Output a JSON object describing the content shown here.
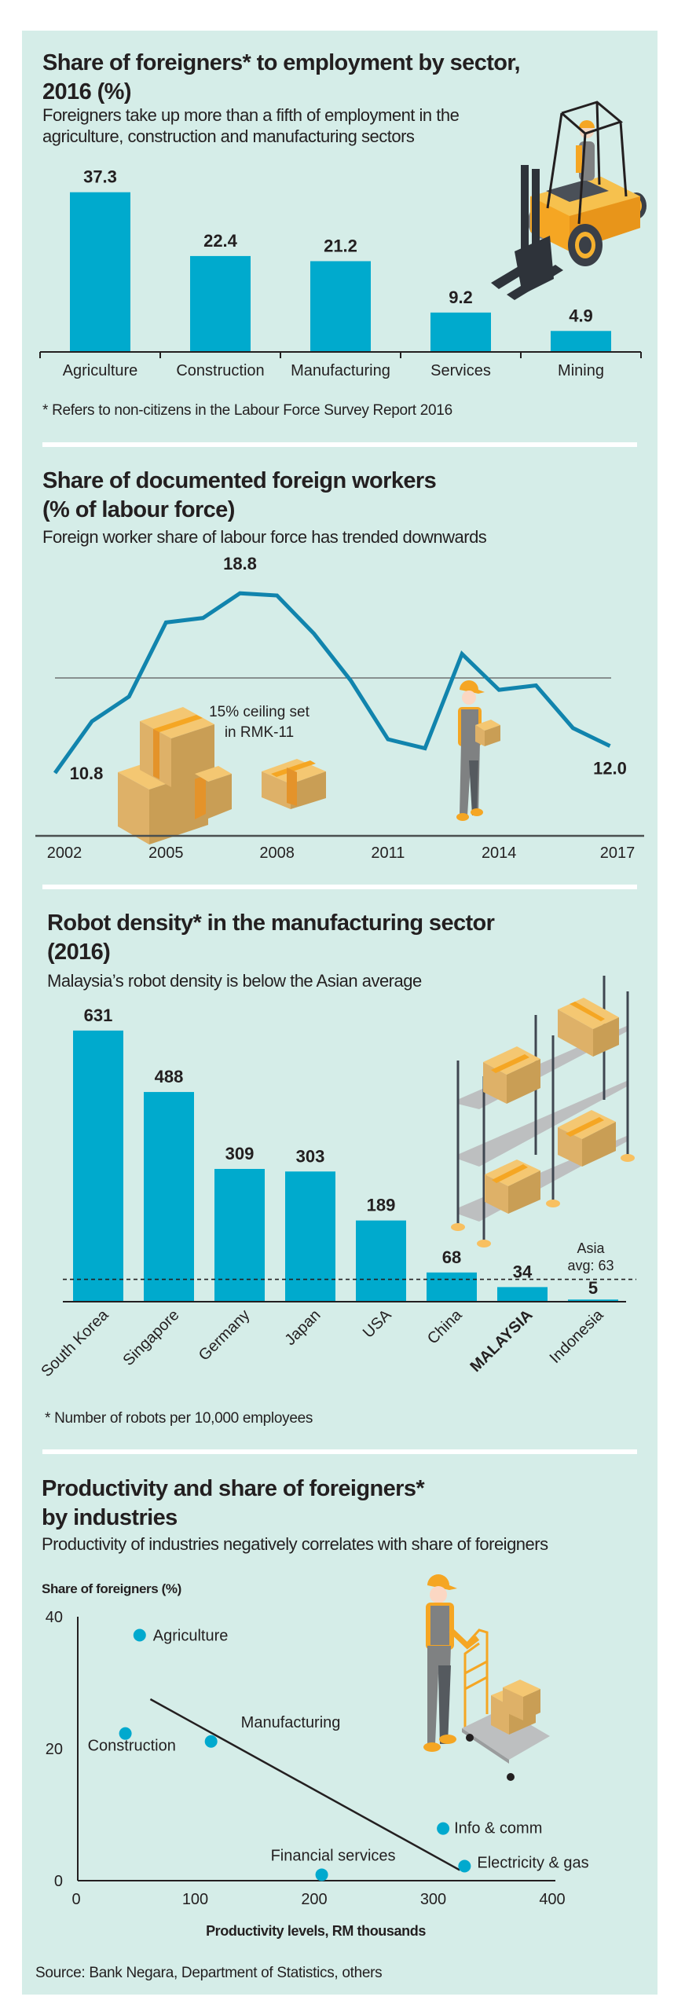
{
  "colors": {
    "panel_bg": "#d5ede8",
    "bar": "#00aacd",
    "line": "#1184ad",
    "dot": "#00a9ce",
    "text": "#231f20",
    "separator": "#ffffff"
  },
  "section1": {
    "title_line1": "Share of foreigners* to employment by sector,",
    "title_line2": "2016 (%)",
    "subtitle_line1": "Foreigners take up more than a fifth of employment in the",
    "subtitle_line2": "agriculture, construction and manufacturing sectors",
    "footnote": "* Refers to non-citizens in the Labour Force Survey Report 2016",
    "illustration": "forklift-icon"
  },
  "section2": {
    "title_line1": "Share of documented foreign workers",
    "title_line2": "(% of labour force)",
    "subtitle": "Foreign worker share of labour force has trended downwards",
    "ceiling_label_line1": "15% ceiling set",
    "ceiling_label_line2": "in RMK-11",
    "illustration": "worker-carrying-box-icon"
  },
  "section3": {
    "title_line1": "Robot density* in the manufacturing sector",
    "title_line2": "(2016)",
    "subtitle": "Malaysia’s robot density is below the Asian average",
    "avg_label_line1": "Asia",
    "avg_label_line2": "avg: 63",
    "footnote": "* Number of robots per 10,000 employees",
    "illustration": "warehouse-shelf-icon"
  },
  "section4": {
    "title_line1": "Productivity and share of foreigners*",
    "title_line2": "by industries",
    "subtitle": "Productivity of industries negatively correlates with share of foreigners",
    "illustration": "worker-pushing-trolley-icon"
  },
  "source": "Source: Bank Negara, Department of Statistics, others",
  "chart_data": [
    {
      "type": "bar",
      "title": "Share of foreigners* to employment by sector, 2016 (%)",
      "categories": [
        "Agriculture",
        "Construction",
        "Manufacturing",
        "Services",
        "Mining"
      ],
      "values": [
        37.3,
        22.4,
        21.2,
        9.2,
        4.9
      ],
      "value_labels": [
        "37.3",
        "22.4",
        "21.2",
        "9.2",
        "4.9"
      ],
      "xlabel": "",
      "ylabel": "%",
      "ylim": [
        0,
        40
      ],
      "grid": false
    },
    {
      "type": "line",
      "title": "Share of documented foreign workers (% of labour force)",
      "x": [
        2002,
        2003,
        2004,
        2005,
        2006,
        2007,
        2008,
        2009,
        2010,
        2011,
        2012,
        2013,
        2014,
        2015,
        2016,
        2017
      ],
      "values": [
        10.8,
        13.1,
        14.2,
        17.5,
        17.7,
        18.8,
        18.7,
        17.0,
        14.9,
        12.3,
        11.9,
        16.1,
        14.5,
        14.7,
        12.8,
        12.0
      ],
      "xticks": [
        "2002",
        "2005",
        "2008",
        "2011",
        "2014",
        "2017"
      ],
      "annotations": [
        {
          "year": 2002,
          "label": "10.8"
        },
        {
          "year": 2007,
          "label": "18.8"
        },
        {
          "year": 2017,
          "label": "12.0"
        }
      ],
      "reference_line": {
        "value": 15,
        "label": "15% ceiling set in RMK-11"
      },
      "ylim": [
        8,
        20
      ],
      "grid": false
    },
    {
      "type": "bar",
      "title": "Robot density* in the manufacturing sector (2016)",
      "categories": [
        "South Korea",
        "Singapore",
        "Germany",
        "Japan",
        "USA",
        "China",
        "MALAYSIA",
        "Indonesia"
      ],
      "values": [
        631,
        488,
        309,
        303,
        189,
        68,
        34,
        5
      ],
      "value_labels": [
        "631",
        "488",
        "309",
        "303",
        "189",
        "68",
        "34",
        "5"
      ],
      "highlight": "MALAYSIA",
      "reference_line": {
        "value": 63,
        "label": "Asia avg: 63",
        "style": "dashed"
      },
      "ylim": [
        0,
        650
      ],
      "grid": false
    },
    {
      "type": "scatter",
      "title": "Productivity and share of foreigners* by industries",
      "xlabel": "Productivity levels, RM thousands",
      "ylabel": "Share of foreigners (%)",
      "xlim": [
        0,
        400
      ],
      "ylim": [
        0,
        40
      ],
      "xticks": [
        "0",
        "100",
        "200",
        "300",
        "400"
      ],
      "yticks": [
        "0",
        "20",
        "40"
      ],
      "points": [
        {
          "label": "Agriculture",
          "x": 52,
          "y": 37.2
        },
        {
          "label": "Construction",
          "x": 40,
          "y": 22.3
        },
        {
          "label": "Manufacturing",
          "x": 112,
          "y": 21.1
        },
        {
          "label": "Financial services",
          "x": 205,
          "y": 0.9
        },
        {
          "label": "Info & comm",
          "x": 307,
          "y": 7.9
        },
        {
          "label": "Electricity & gas",
          "x": 325,
          "y": 2.2
        }
      ],
      "trendline": {
        "x1": 61,
        "y1": 27.5,
        "x2": 321,
        "y2": 1.6
      },
      "grid": false
    }
  ]
}
